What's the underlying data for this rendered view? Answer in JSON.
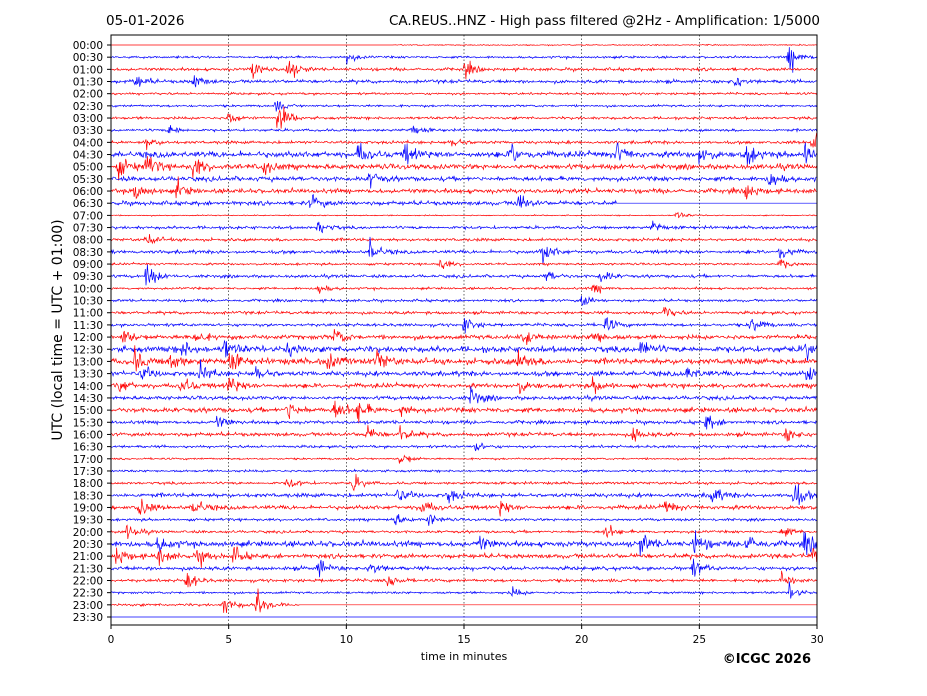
{
  "header": {
    "date": "05-01-2026",
    "title": "CA.REUS..HNZ - High pass filtered @2Hz - Amplification: 1/5000"
  },
  "footer": {
    "copyright": "©ICGC 2026"
  },
  "chart_data": {
    "type": "line",
    "subtype": "helicorder",
    "xlabel": "time in minutes",
    "ylabel": "UTC (local time = UTC + 01:00)",
    "xlim": [
      0,
      30
    ],
    "xticks": [
      "0",
      "5",
      "10",
      "15",
      "20",
      "25",
      "30"
    ],
    "grid": "vertical dotted at 5-minute intervals",
    "colors": [
      "#ff0000",
      "#0000ff"
    ],
    "rows": [
      {
        "label": "00:00",
        "noise": 0.3,
        "start": 12,
        "events": []
      },
      {
        "label": "00:30",
        "noise": 0.6,
        "events": [
          [
            10,
            1.5
          ],
          [
            28.8,
            4
          ]
        ]
      },
      {
        "label": "01:00",
        "noise": 0.8,
        "events": [
          [
            6,
            2.5
          ],
          [
            7.5,
            3
          ],
          [
            15,
            2
          ]
        ]
      },
      {
        "label": "01:30",
        "noise": 0.9,
        "events": [
          [
            1,
            2
          ],
          [
            3.5,
            1.8
          ],
          [
            26.5,
            1.5
          ]
        ]
      },
      {
        "label": "02:00",
        "noise": 0.6,
        "events": []
      },
      {
        "label": "02:30",
        "noise": 0.6,
        "events": [
          [
            7,
            1.2
          ]
        ]
      },
      {
        "label": "03:00",
        "noise": 0.7,
        "events": [
          [
            5,
            2
          ],
          [
            7.1,
            4
          ]
        ]
      },
      {
        "label": "03:30",
        "noise": 0.7,
        "events": [
          [
            2.5,
            1.5
          ],
          [
            12.8,
            1.5
          ]
        ]
      },
      {
        "label": "04:00",
        "noise": 0.8,
        "events": [
          [
            1.5,
            1.5
          ],
          [
            14.5,
            1.5
          ],
          [
            29.8,
            3
          ]
        ]
      },
      {
        "label": "04:30",
        "noise": 1.6,
        "events": [
          [
            10.5,
            2.5
          ],
          [
            12.5,
            2.5
          ],
          [
            17,
            2.5
          ],
          [
            21.5,
            2.5
          ],
          [
            25,
            2.5
          ],
          [
            27,
            2.5
          ],
          [
            29.5,
            2.5
          ]
        ]
      },
      {
        "label": "05:00",
        "noise": 1.4,
        "events": [
          [
            0.3,
            2.5
          ],
          [
            1.5,
            3
          ],
          [
            3.5,
            3
          ],
          [
            6.5,
            2
          ]
        ]
      },
      {
        "label": "05:30",
        "noise": 1.2,
        "events": [
          [
            11,
            2
          ],
          [
            28,
            2.5
          ]
        ]
      },
      {
        "label": "06:00",
        "noise": 1.2,
        "events": [
          [
            1,
            2.5
          ],
          [
            2.8,
            2
          ],
          [
            27,
            2
          ]
        ]
      },
      {
        "label": "06:30",
        "noise": 1.1,
        "end": 21.5,
        "events": [
          [
            8.5,
            2
          ],
          [
            17.3,
            2.5
          ]
        ]
      },
      {
        "label": "07:00",
        "noise": 0.3,
        "events": [
          [
            24,
            1
          ]
        ]
      },
      {
        "label": "07:30",
        "noise": 0.8,
        "events": [
          [
            8.8,
            1.8
          ],
          [
            23,
            1.5
          ]
        ]
      },
      {
        "label": "08:00",
        "noise": 0.8,
        "events": [
          [
            1.5,
            1.5
          ]
        ]
      },
      {
        "label": "08:30",
        "noise": 0.9,
        "events": [
          [
            11,
            2.8
          ],
          [
            18.3,
            3
          ],
          [
            28.4,
            2
          ]
        ]
      },
      {
        "label": "09:00",
        "noise": 0.6,
        "events": [
          [
            14,
            1.5
          ],
          [
            28.4,
            1.5
          ]
        ]
      },
      {
        "label": "09:30",
        "noise": 0.8,
        "events": [
          [
            1.5,
            3
          ],
          [
            18.5,
            1.5
          ],
          [
            20.8,
            1.8
          ]
        ]
      },
      {
        "label": "10:00",
        "noise": 0.6,
        "events": [
          [
            8.8,
            1.5
          ],
          [
            20.5,
            1.5
          ]
        ]
      },
      {
        "label": "10:30",
        "noise": 0.7,
        "events": [
          [
            20,
            1.5
          ]
        ]
      },
      {
        "label": "11:00",
        "noise": 0.8,
        "events": [
          [
            23.5,
            1.5
          ]
        ]
      },
      {
        "label": "11:30",
        "noise": 0.8,
        "events": [
          [
            15,
            2
          ],
          [
            21,
            1.8
          ],
          [
            27.2,
            2.5
          ]
        ]
      },
      {
        "label": "12:00",
        "noise": 1.2,
        "events": [
          [
            0.5,
            2
          ],
          [
            3.5,
            2.2
          ],
          [
            9.5,
            2
          ],
          [
            17.5,
            2
          ],
          [
            20.5,
            2.5
          ]
        ]
      },
      {
        "label": "12:30",
        "noise": 1.6,
        "events": [
          [
            3,
            2
          ],
          [
            4.8,
            2.5
          ],
          [
            7.5,
            2
          ],
          [
            22.5,
            2.5
          ],
          [
            29.5,
            2.5
          ]
        ]
      },
      {
        "label": "13:00",
        "noise": 1.6,
        "events": [
          [
            1,
            2.5
          ],
          [
            2.5,
            2.5
          ],
          [
            5,
            3
          ],
          [
            9.2,
            2
          ],
          [
            11.3,
            2.5
          ],
          [
            17.3,
            2.5
          ]
        ]
      },
      {
        "label": "13:30",
        "noise": 1.3,
        "events": [
          [
            1.3,
            2
          ],
          [
            3.8,
            2
          ],
          [
            6.2,
            2
          ],
          [
            24.5,
            2
          ],
          [
            29.6,
            2.5
          ]
        ]
      },
      {
        "label": "14:00",
        "noise": 1.2,
        "events": [
          [
            0.3,
            2
          ],
          [
            3,
            2.2
          ],
          [
            5,
            2.5
          ],
          [
            17.3,
            2
          ],
          [
            20.5,
            2
          ]
        ]
      },
      {
        "label": "14:30",
        "noise": 1.0,
        "events": [
          [
            15.3,
            2.5
          ]
        ]
      },
      {
        "label": "15:00",
        "noise": 1.3,
        "events": [
          [
            7.5,
            2.5
          ],
          [
            9.5,
            2.5
          ],
          [
            10.5,
            2.5
          ],
          [
            12.2,
            2
          ]
        ]
      },
      {
        "label": "15:30",
        "noise": 0.9,
        "events": [
          [
            4.5,
            1.5
          ],
          [
            25.3,
            2
          ]
        ]
      },
      {
        "label": "16:00",
        "noise": 1.0,
        "events": [
          [
            10.8,
            2
          ],
          [
            12.3,
            2
          ],
          [
            22.2,
            2
          ],
          [
            28.7,
            1.8
          ]
        ]
      },
      {
        "label": "16:30",
        "noise": 0.7,
        "events": [
          [
            15.5,
            1.2
          ]
        ]
      },
      {
        "label": "17:00",
        "noise": 0.5,
        "events": [
          [
            12.3,
            1.8
          ]
        ]
      },
      {
        "label": "17:30",
        "noise": 0.6,
        "events": []
      },
      {
        "label": "18:00",
        "noise": 0.7,
        "events": [
          [
            7.5,
            1.5
          ],
          [
            10.3,
            2
          ]
        ]
      },
      {
        "label": "18:30",
        "noise": 1.1,
        "events": [
          [
            12.2,
            2
          ],
          [
            14.3,
            2
          ],
          [
            25.5,
            2.5
          ],
          [
            29,
            3.5
          ]
        ]
      },
      {
        "label": "19:00",
        "noise": 1.1,
        "events": [
          [
            1.2,
            2.5
          ],
          [
            3.5,
            2.5
          ],
          [
            13.2,
            2
          ],
          [
            16.5,
            2
          ],
          [
            23.5,
            1.8
          ]
        ]
      },
      {
        "label": "19:30",
        "noise": 0.7,
        "events": [
          [
            12,
            1.8
          ],
          [
            13.5,
            1.5
          ]
        ]
      },
      {
        "label": "20:00",
        "noise": 0.7,
        "events": [
          [
            0.7,
            2
          ],
          [
            21,
            1.8
          ],
          [
            28.5,
            1.5
          ]
        ]
      },
      {
        "label": "20:30",
        "noise": 1.5,
        "events": [
          [
            2,
            2
          ],
          [
            15.6,
            2
          ],
          [
            22.5,
            2.5
          ],
          [
            24.8,
            3
          ],
          [
            27,
            2.5
          ],
          [
            29.5,
            2.5
          ]
        ]
      },
      {
        "label": "21:00",
        "noise": 1.2,
        "events": [
          [
            0.2,
            2.5
          ],
          [
            2,
            2
          ],
          [
            3.7,
            2
          ],
          [
            5.2,
            2
          ],
          [
            29.8,
            2
          ]
        ]
      },
      {
        "label": "21:30",
        "noise": 1.0,
        "events": [
          [
            8.8,
            2
          ],
          [
            11,
            2
          ],
          [
            24.7,
            2
          ]
        ]
      },
      {
        "label": "22:00",
        "noise": 0.8,
        "events": [
          [
            3.2,
            2.5
          ],
          [
            11.8,
            1.8
          ],
          [
            28.5,
            2
          ]
        ]
      },
      {
        "label": "22:30",
        "noise": 0.6,
        "events": [
          [
            17,
            1.2
          ],
          [
            28.8,
            2
          ]
        ]
      },
      {
        "label": "23:00",
        "noise": 0.7,
        "end": 8,
        "events": [
          [
            4.8,
            2.5
          ],
          [
            6.2,
            3.5
          ]
        ]
      },
      {
        "label": "23:30",
        "noise": 0.0,
        "events": []
      }
    ]
  }
}
